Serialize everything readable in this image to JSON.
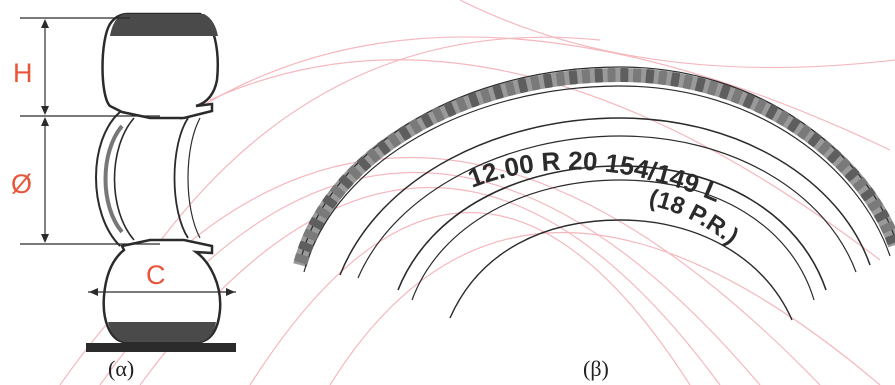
{
  "panel_a": {
    "dimension_labels": {
      "height": "H",
      "diameter": "Ø",
      "width": "C"
    },
    "caption": "(α)"
  },
  "panel_b": {
    "size_marking": "12.00 R 20 154/149 L",
    "ply_rating": "(18 P.R.)",
    "caption": "(β)"
  },
  "colors": {
    "annotation": "#e8553a",
    "watermark_arcs": "#f2a7ad",
    "ink": "#2b2b2b",
    "tread_block": "#6d6d6d"
  }
}
